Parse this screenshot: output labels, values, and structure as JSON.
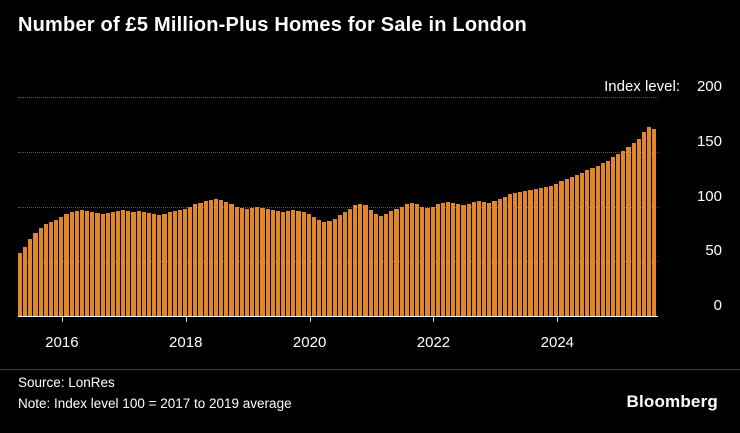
{
  "header": {
    "title": "Number of £5 Million-Plus Homes for Sale in London"
  },
  "y_axis": {
    "title": "Index level:"
  },
  "footer": {
    "source": "Source: LonRes",
    "note": "Note: Index level 100 = 2017 to 2019 average",
    "brand": "Bloomberg"
  },
  "colors": {
    "background": "#000000",
    "bar": "#E0862C",
    "text": "#FFFFFF",
    "grid": "#5C5C5C"
  },
  "chart_data": {
    "type": "bar",
    "title": "Number of £5 Million-Plus Homes for Sale in London",
    "ylabel": "Index level",
    "ylim": [
      0,
      200
    ],
    "yticks": [
      0,
      50,
      100,
      150,
      200
    ],
    "grid": true,
    "legend": false,
    "x_unit": "month",
    "x_start": "2015-05",
    "x_end": "2025-08",
    "x_tick_labels": [
      {
        "label": "2016",
        "bar_index": 8
      },
      {
        "label": "2018",
        "bar_index": 32
      },
      {
        "label": "2020",
        "bar_index": 56
      },
      {
        "label": "2022",
        "bar_index": 80
      },
      {
        "label": "2024",
        "bar_index": 104
      }
    ],
    "values": [
      58,
      63,
      70,
      76,
      80,
      84,
      86,
      88,
      90,
      93,
      95,
      96,
      97,
      96,
      95,
      94,
      93,
      94,
      95,
      96,
      97,
      96,
      95,
      96,
      95,
      94,
      93,
      92,
      93,
      95,
      96,
      97,
      98,
      100,
      102,
      103,
      105,
      106,
      107,
      106,
      104,
      102,
      100,
      99,
      98,
      99,
      100,
      99,
      98,
      97,
      96,
      95,
      96,
      97,
      96,
      95,
      93,
      90,
      88,
      86,
      87,
      89,
      92,
      95,
      98,
      101,
      102,
      101,
      97,
      93,
      91,
      93,
      96,
      98,
      100,
      102,
      103,
      102,
      100,
      99,
      100,
      102,
      103,
      104,
      103,
      102,
      101,
      102,
      104,
      105,
      104,
      103,
      105,
      107,
      109,
      111,
      112,
      113,
      114,
      115,
      116,
      117,
      118,
      119,
      121,
      123,
      125,
      127,
      129,
      131,
      133,
      135,
      137,
      140,
      142,
      145,
      148,
      151,
      154,
      158,
      162,
      168,
      173,
      171
    ]
  }
}
